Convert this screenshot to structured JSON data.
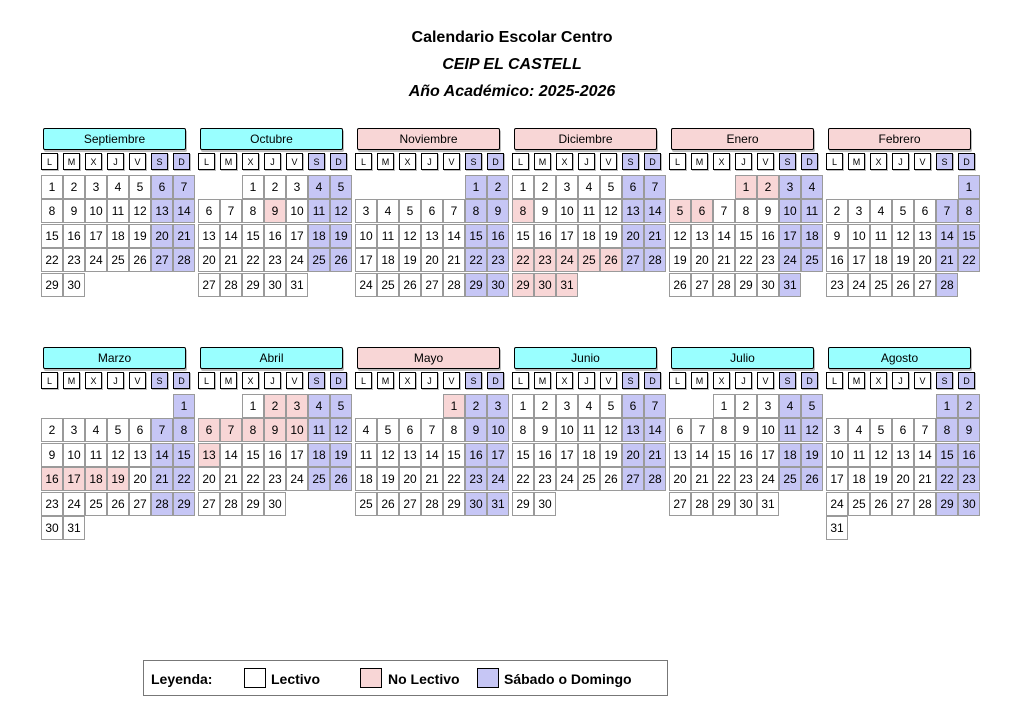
{
  "header": {
    "title": "Calendario Escolar Centro",
    "school": "CEIP EL CASTELL",
    "year": "Año Académico: 2025-2026"
  },
  "weekdays": [
    "L",
    "M",
    "X",
    "J",
    "V",
    "S",
    "D"
  ],
  "months": [
    {
      "name": "Septiembre",
      "type": "lectivo",
      "first_weekday": 0,
      "days": 30,
      "no_lectivo": []
    },
    {
      "name": "Octubre",
      "type": "lectivo",
      "first_weekday": 2,
      "days": 31,
      "no_lectivo": [
        9
      ]
    },
    {
      "name": "Noviembre",
      "type": "no-lectivo",
      "first_weekday": 5,
      "days": 30,
      "no_lectivo": []
    },
    {
      "name": "Diciembre",
      "type": "no-lectivo",
      "first_weekday": 0,
      "days": 31,
      "no_lectivo": [
        8,
        22,
        23,
        24,
        25,
        26,
        29,
        30,
        31
      ]
    },
    {
      "name": "Enero",
      "type": "no-lectivo",
      "first_weekday": 3,
      "days": 31,
      "no_lectivo": [
        1,
        2,
        5,
        6
      ]
    },
    {
      "name": "Febrero",
      "type": "no-lectivo",
      "first_weekday": 6,
      "days": 28,
      "no_lectivo": []
    },
    {
      "name": "Marzo",
      "type": "lectivo",
      "first_weekday": 6,
      "days": 31,
      "no_lectivo": [
        16,
        17,
        18,
        19
      ]
    },
    {
      "name": "Abril",
      "type": "lectivo",
      "first_weekday": 2,
      "days": 30,
      "no_lectivo": [
        2,
        3,
        6,
        7,
        8,
        9,
        10,
        13
      ]
    },
    {
      "name": "Mayo",
      "type": "no-lectivo",
      "first_weekday": 4,
      "days": 31,
      "no_lectivo": [
        1
      ]
    },
    {
      "name": "Junio",
      "type": "lectivo",
      "first_weekday": 0,
      "days": 30,
      "no_lectivo": []
    },
    {
      "name": "Julio",
      "type": "lectivo",
      "first_weekday": 2,
      "days": 31,
      "no_lectivo": []
    },
    {
      "name": "Agosto",
      "type": "lectivo",
      "first_weekday": 5,
      "days": 31,
      "no_lectivo": []
    }
  ],
  "legend": {
    "label": "Leyenda:",
    "items": [
      {
        "label": "Lectivo",
        "color": "#ffffff"
      },
      {
        "label": "No Lectivo",
        "color": "#f8d6d6"
      },
      {
        "label": "Sábado o Domingo",
        "color": "#c6c6f5"
      }
    ]
  }
}
